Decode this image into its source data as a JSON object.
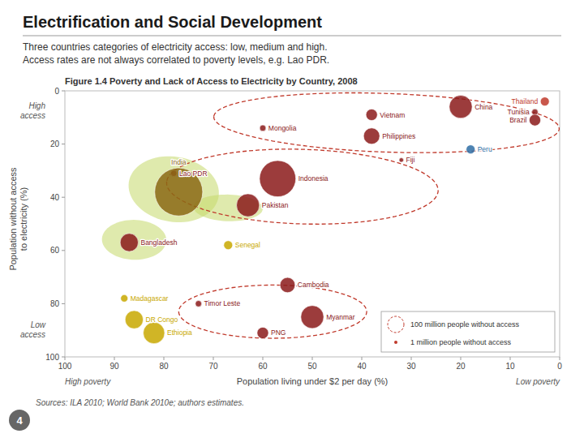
{
  "title": "Electrification and Social Development",
  "subtitle": [
    "Three countries categories of electricity access: low, medium and high.",
    "Access rates are not always correlated to poverty levels, e.g. Lao PDR."
  ],
  "source": "Sources: ILA 2010; World Bank 2010e; authors estimates.",
  "page_number": "4",
  "chart_data": {
    "type": "bubble",
    "title": "Figure 1.4  Poverty and Lack of Access to Electricity by Country, 2008",
    "x_label": "Population living under $2 per day (%)",
    "y_label": "Population without access\nto electricity (%)",
    "y_annotations": {
      "top": "High\naccess",
      "bottom": "Low\naccess"
    },
    "x_annotations": {
      "left": "High poverty",
      "right": "Low poverty"
    },
    "point_labels": [
      "China",
      "Vietnam",
      "Mongolia",
      "Philippines",
      "Thailand",
      "Tunisia",
      "Brazil",
      "Peru",
      "Fiji",
      "Indonesia",
      "Pakistan",
      "Lao PDR",
      "India",
      "Bangladesh",
      "Senegal",
      "Madagascar",
      "DR Congo",
      "Ethiopia",
      "Timor Leste",
      "Cambodia",
      "Myanmar",
      "PNG"
    ],
    "x": [
      20,
      38,
      60,
      38,
      3,
      5,
      5,
      18,
      32,
      57,
      63,
      78,
      77,
      87,
      67,
      88,
      86,
      82,
      73,
      55,
      50,
      60
    ],
    "values": [
      6,
      9,
      14,
      17,
      4,
      8,
      11,
      22,
      26,
      33,
      43,
      31,
      38,
      57,
      58,
      78,
      86,
      91,
      80,
      73,
      85,
      91
    ],
    "sizes": [
      800,
      200,
      60,
      400,
      120,
      60,
      200,
      120,
      30,
      2000,
      800,
      60,
      3500,
      500,
      120,
      80,
      500,
      700,
      60,
      350,
      800,
      200
    ],
    "colors": [
      "#8b1a1a",
      "#8b1a1a",
      "#8b1a1a",
      "#8b1a1a",
      "#c0392b",
      "#8b1a1a",
      "#8b1a1a",
      "#2e6da4",
      "#8b1a1a",
      "#8b1a1a",
      "#8b1a1a",
      "#8b1a1a",
      "#8b6914",
      "#8b1a1a",
      "#c8a800",
      "#c8a800",
      "#c8a800",
      "#c8a800",
      "#8b1a1a",
      "#8b1a1a",
      "#8b1a1a",
      "#8b1a1a"
    ],
    "group_outlines": [
      {
        "cx": 35,
        "cy": 12,
        "width": 70,
        "height": 22,
        "angle": -4,
        "color": "#c0392b"
      },
      {
        "cx": 52,
        "cy": 36,
        "width": 55,
        "height": 28,
        "angle": -4,
        "color": "#c0392b"
      },
      {
        "cx": 58,
        "cy": 83,
        "width": 38,
        "height": 20,
        "angle": 0,
        "color": "#c0392b"
      }
    ],
    "highlights": [
      {
        "cx": 78,
        "cy": 37,
        "width": 18,
        "height": 25,
        "angle": 10,
        "color": "#c5d96a"
      },
      {
        "cx": 86,
        "cy": 56,
        "width": 13,
        "height": 15,
        "angle": 5,
        "color": "#c5d96a"
      },
      {
        "cx": 67,
        "cy": 44,
        "width": 14,
        "height": 10,
        "angle": -5,
        "color": "#c5d96a"
      }
    ],
    "size_legend": [
      "100 million people without access",
      "1 million people without access"
    ],
    "xlim": [
      100,
      0
    ],
    "ylim": [
      100,
      0
    ],
    "xticks": [
      100,
      90,
      80,
      70,
      60,
      50,
      40,
      30,
      20,
      10,
      0
    ],
    "yticks": [
      0,
      20,
      40,
      60,
      80,
      100
    ],
    "grid": false
  }
}
